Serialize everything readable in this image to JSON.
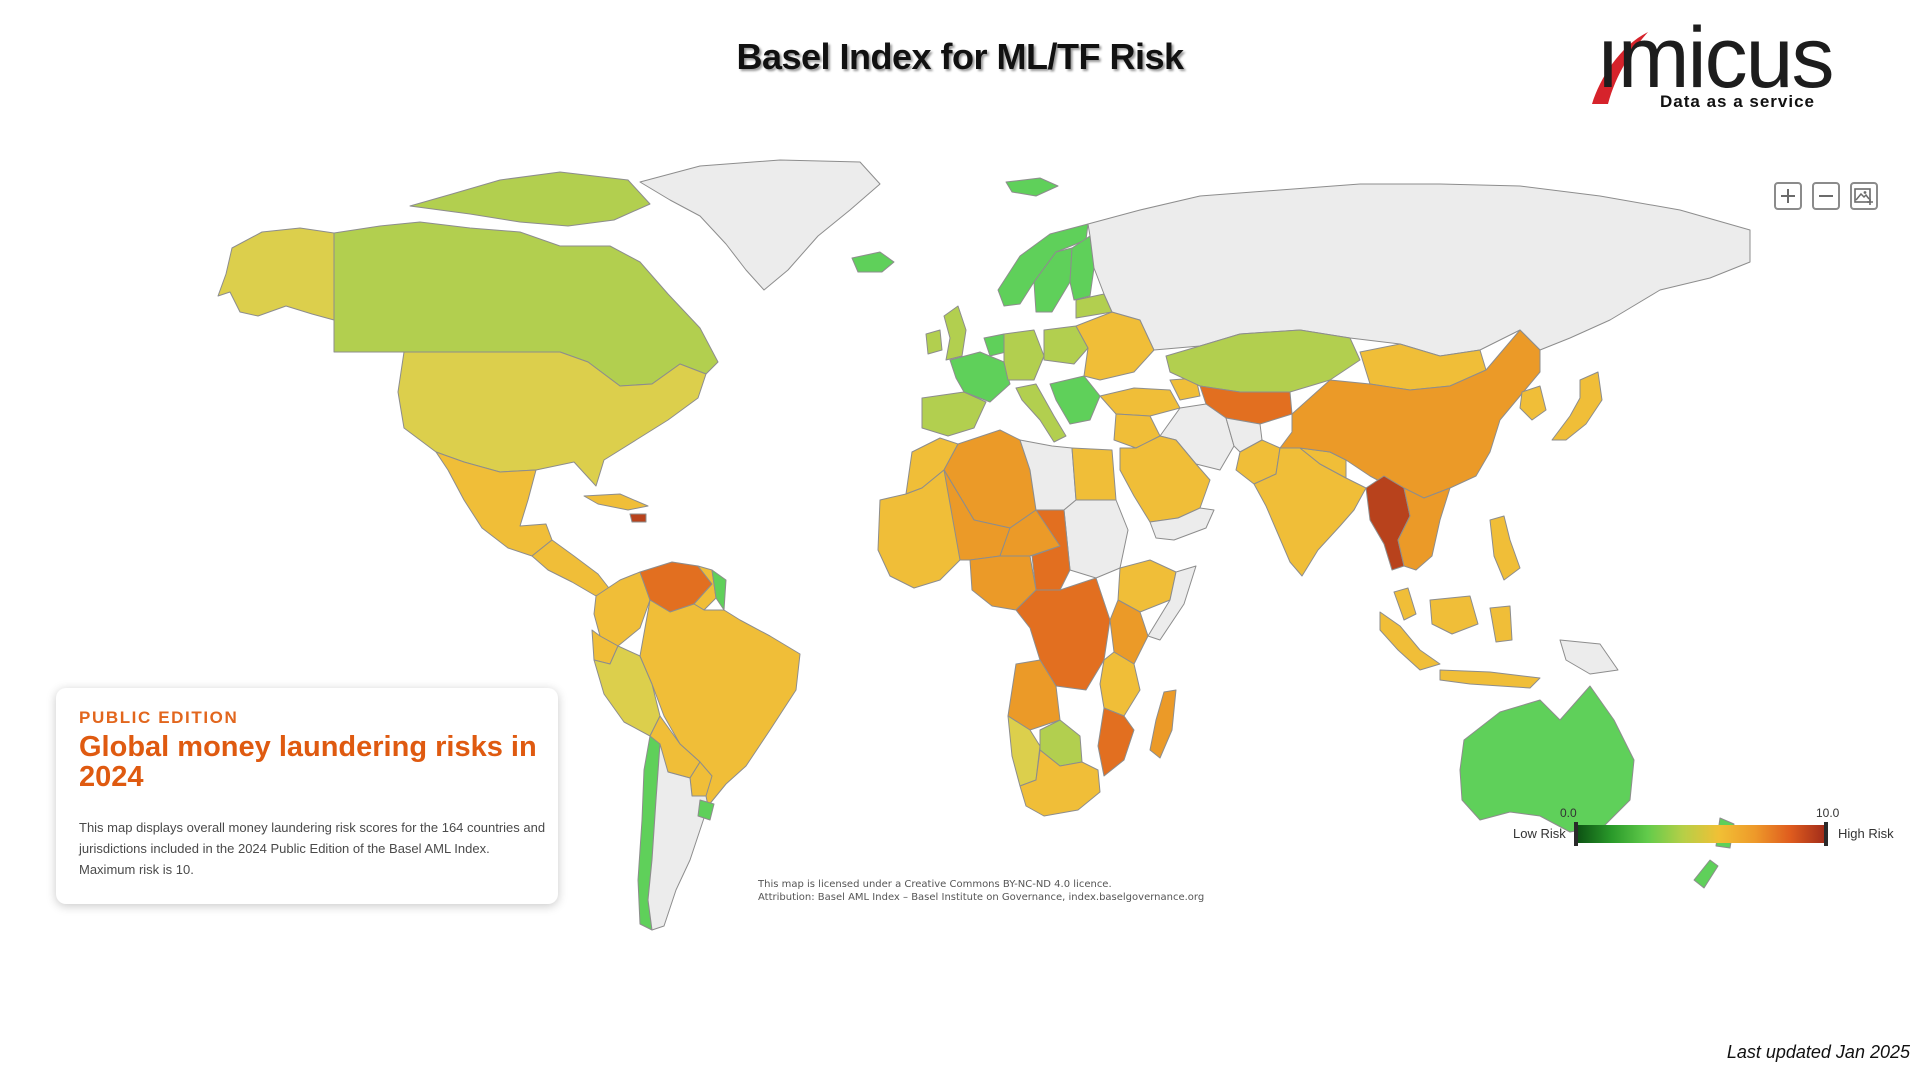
{
  "page": {
    "title": "Basel Index for ML/TF Risk",
    "last_updated": "Last updated Jan 2025"
  },
  "logo": {
    "wordmark": "aimicus",
    "display": "ımicus",
    "tagline": "Data as a service",
    "accent_color": "#d6232b"
  },
  "map_controls": {
    "zoom_in": "+",
    "zoom_out": "−",
    "export_icon": "image-download-icon"
  },
  "info_card": {
    "edition": "PUBLIC EDITION",
    "heading": "Global money laundering risks in 2024",
    "body": "This map displays overall money laundering risk scores for the 164 countries and jurisdictions included in the 2024 Public Edition of the Basel AML Index. Maximum risk is 10."
  },
  "legend": {
    "min_value": "0.0",
    "max_value": "10.0",
    "low_label": "Low Risk",
    "high_label": "High Risk",
    "gradient": [
      "#0b4f12",
      "#2a9a2a",
      "#62cb4b",
      "#b6cf47",
      "#f1c035",
      "#ee9a2a",
      "#df5c1e",
      "#a02b1a"
    ]
  },
  "attribution": {
    "license": "This map is licensed under a Creative Commons BY-NC-ND 4.0 licence.",
    "credit": "Attribution: Basel AML Index – Basel Institute on Governance, index.baselgovernance.org"
  },
  "colors": {
    "no_data": "#ececec",
    "low_green": "#5fd05a",
    "lime": "#b2cf4f",
    "yellow": "#dccf4c",
    "amber": "#f0be38",
    "orange": "#eb9a28",
    "dark_orange": "#e26f20",
    "red": "#b8421c"
  },
  "countries": {
    "canada": "lime",
    "alaska": "yellow",
    "usa": "yellow",
    "mexico": "amber",
    "central_america": "amber",
    "cuba": "amber",
    "haiti": "red",
    "greenland": "no_data",
    "iceland": "low_green",
    "svalbard": "low_green",
    "colombia": "amber",
    "venezuela": "dark_orange",
    "guyana": "amber",
    "suriname": "low_green",
    "ecuador": "amber",
    "peru": "yellow",
    "brazil": "amber",
    "bolivia": "amber",
    "paraguay": "amber",
    "chile": "low_green",
    "argentina": "no_data",
    "uruguay": "low_green",
    "uk": "lime",
    "ireland": "lime",
    "france": "low_green",
    "iberia": "lime",
    "benelux": "low_green",
    "germany": "lime",
    "poland": "lime",
    "italy": "lime",
    "balkans": "low_green",
    "eastern_europe": "amber",
    "norway": "low_green",
    "sweden": "low_green",
    "finland": "low_green",
    "baltics": "lime",
    "russia": "no_data",
    "turkey": "amber",
    "caucasus": "amber",
    "kazakhstan": "lime",
    "central_asia": "dark_orange",
    "iran": "no_data",
    "afghanistan": "no_data",
    "pakistan": "amber",
    "middle_east": "amber",
    "saudi_arabia": "amber",
    "yemen": "no_data",
    "india": "amber",
    "nepal": "amber",
    "china": "orange",
    "mongolia": "amber",
    "korea": "amber",
    "japan": "amber",
    "myanmar": "red",
    "indochina": "orange",
    "malaysia": "amber",
    "indonesia": "amber",
    "philippines": "amber",
    "png": "no_data",
    "australia": "low_green",
    "new_zealand": "low_green",
    "morocco": "amber",
    "algeria": "orange",
    "libya": "no_data",
    "egypt": "amber",
    "sudan": "no_data",
    "west_africa": "amber",
    "mali": "orange",
    "niger": "orange",
    "chad": "dark_orange",
    "nigeria": "orange",
    "ethiopia": "amber",
    "somalia": "no_data",
    "kenya": "orange",
    "drc": "dark_orange",
    "angola": "orange",
    "tanzania": "amber",
    "mozambique": "dark_orange",
    "namibia": "yellow",
    "botswana": "lime",
    "south_africa": "amber",
    "madagascar": "orange"
  }
}
